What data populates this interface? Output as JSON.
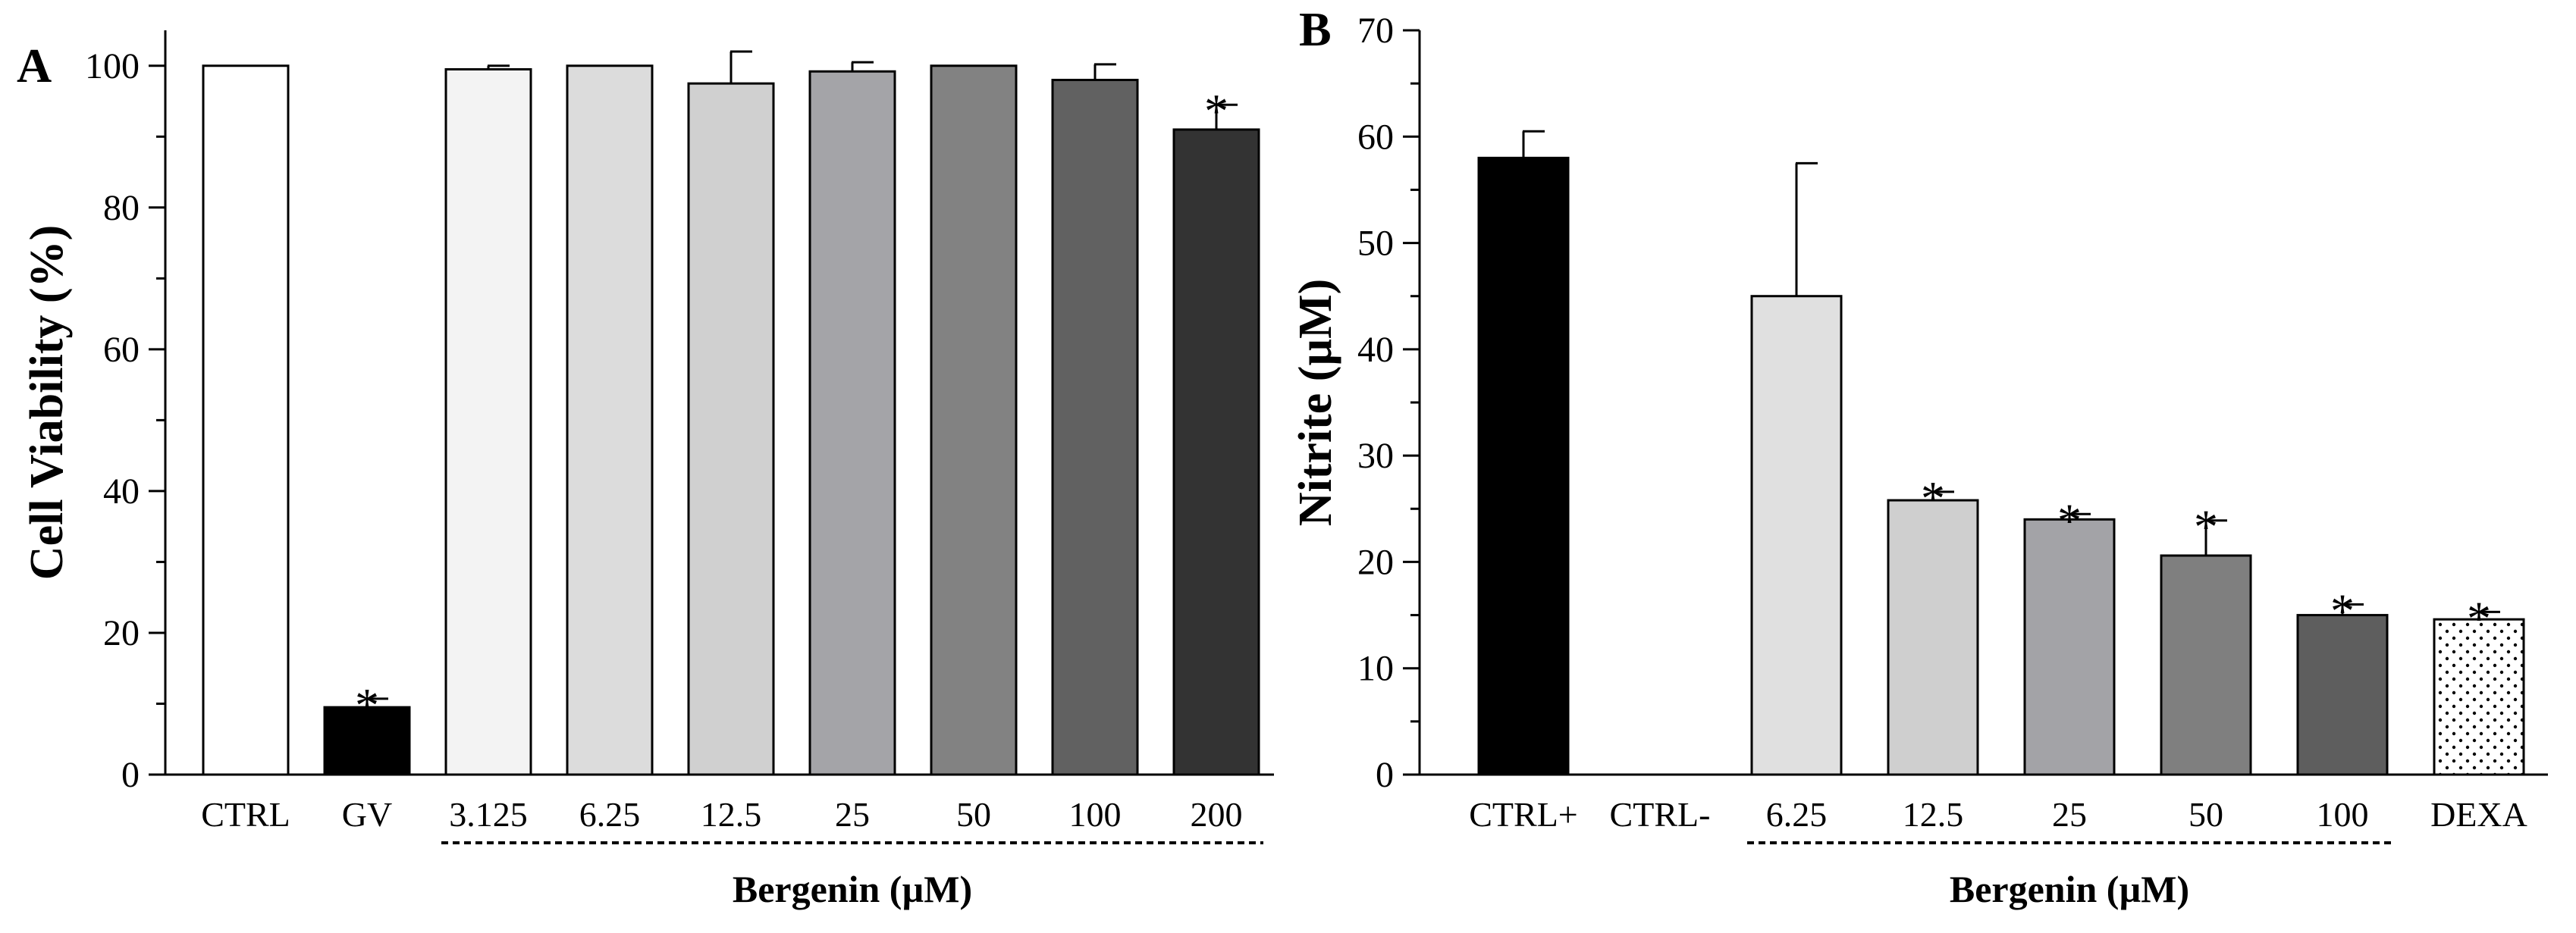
{
  "chart_data": [
    {
      "type": "bar",
      "panel_label": "A",
      "title": "",
      "xlabel": "",
      "ylabel": "Cell Viability (%)",
      "ylim": [
        0,
        105
      ],
      "yticks": [
        0,
        20,
        40,
        60,
        80,
        100
      ],
      "grid": false,
      "categories": [
        "CTRL",
        "GV",
        "3.125",
        "6.25",
        "12.5",
        "25",
        "50",
        "100",
        "200"
      ],
      "values": [
        100,
        9.5,
        99.5,
        100,
        97.5,
        99.2,
        100,
        98,
        91
      ],
      "errors": [
        0,
        1.2,
        0.5,
        0,
        4.5,
        1.3,
        0,
        2.2,
        3.5
      ],
      "significant": [
        false,
        true,
        false,
        false,
        false,
        false,
        false,
        false,
        true
      ],
      "significance_symbol": "*",
      "bar_colors": [
        "#ffffff",
        "#000000",
        "#f3f3f3",
        "#dcdcdc",
        "#d0d0d0",
        "#a4a4a8",
        "#828282",
        "#616161",
        "#333333"
      ],
      "bar_patterns": [
        "solid",
        "solid",
        "solid",
        "solid",
        "solid",
        "solid",
        "solid",
        "solid",
        "solid"
      ],
      "group": {
        "label": "Bergenin (µM)",
        "from_index": 2,
        "to_index": 8
      }
    },
    {
      "type": "bar",
      "panel_label": "B",
      "title": "",
      "xlabel": "",
      "ylabel": "Nitrite (µM)",
      "ylim": [
        0,
        70
      ],
      "yticks": [
        0,
        10,
        20,
        30,
        40,
        50,
        60,
        70
      ],
      "grid": false,
      "categories": [
        "CTRL+",
        "CTRL-",
        "6.25",
        "12.5",
        "25",
        "50",
        "100",
        "DEXA"
      ],
      "values": [
        58,
        0,
        45,
        25.8,
        24,
        20.6,
        15,
        14.6
      ],
      "errors": [
        2.5,
        0,
        12.5,
        0.8,
        0.5,
        3.3,
        1,
        0.7
      ],
      "significant": [
        false,
        false,
        false,
        true,
        true,
        true,
        true,
        true
      ],
      "significance_symbol": "*",
      "bar_colors": [
        "#000000",
        "#ffffff",
        "#e0e0e0",
        "#cfcfcf",
        "#a3a3a7",
        "#7f7f7f",
        "#5e5e5e",
        "#ffffff"
      ],
      "bar_patterns": [
        "solid",
        "solid",
        "solid",
        "solid",
        "solid",
        "solid",
        "solid",
        "dots"
      ],
      "group": {
        "label": "Bergenin (µM)",
        "from_index": 2,
        "to_index": 6
      }
    }
  ]
}
